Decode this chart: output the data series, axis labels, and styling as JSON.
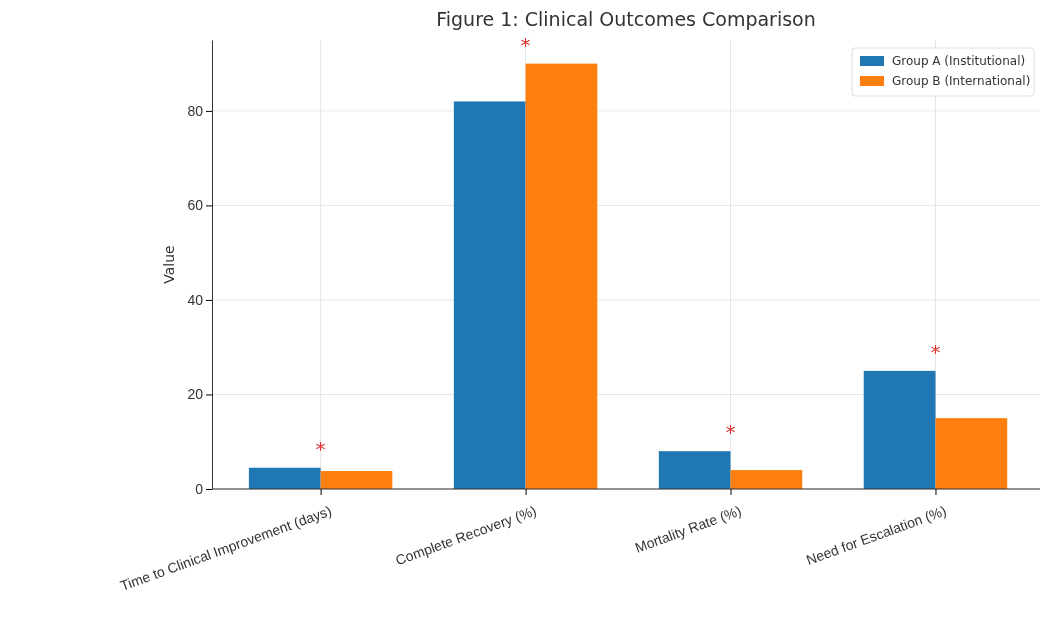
{
  "chart_data": {
    "type": "bar",
    "title": "Figure 1: Clinical Outcomes Comparison",
    "ylabel": "Value",
    "categories": [
      "Time to Clinical Improvement (days)",
      "Complete Recovery (%)",
      "Mortality Rate (%)",
      "Need for Escalation (%)"
    ],
    "series": [
      {
        "name": "Group A (Institutional)",
        "color": "#1f77b4",
        "values": [
          4.5,
          82,
          8,
          25
        ]
      },
      {
        "name": "Group B (International)",
        "color": "#ff7f0e",
        "values": [
          3.8,
          90,
          4,
          15
        ]
      }
    ],
    "ylim": [
      0,
      95
    ],
    "yticks": [
      0,
      20,
      40,
      60,
      80
    ],
    "grid": true,
    "legend": "top right",
    "annotations": [
      "*",
      "*",
      "*",
      "*"
    ]
  }
}
